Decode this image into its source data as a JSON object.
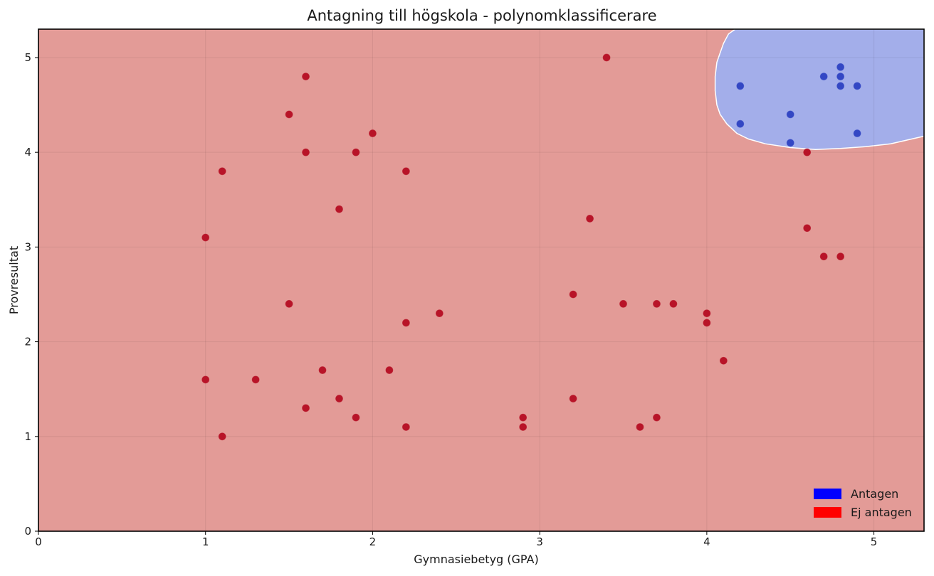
{
  "chart_data": {
    "type": "scatter",
    "title": "Antagning till högskola - polynomklassificerare",
    "xlabel": "Gymnasiebetyg (GPA)",
    "ylabel": "Provresultat",
    "xlim": [
      0,
      5.3
    ],
    "ylim": [
      0,
      5.3
    ],
    "x_ticks": [
      0,
      1,
      2,
      3,
      4,
      5
    ],
    "y_ticks": [
      0,
      1,
      2,
      3,
      4,
      5
    ],
    "grid": true,
    "legend_position": "bottom-right",
    "background_region_color": "#e39b97",
    "decision_region": {
      "label": "Antagen",
      "color": "#a3aeea",
      "boundary": [
        [
          4.17,
          5.3
        ],
        [
          4.13,
          5.25
        ],
        [
          4.1,
          5.15
        ],
        [
          4.08,
          5.05
        ],
        [
          4.06,
          4.95
        ],
        [
          4.05,
          4.8
        ],
        [
          4.05,
          4.65
        ],
        [
          4.06,
          4.5
        ],
        [
          4.08,
          4.4
        ],
        [
          4.12,
          4.3
        ],
        [
          4.18,
          4.2
        ],
        [
          4.25,
          4.14
        ],
        [
          4.35,
          4.09
        ],
        [
          4.5,
          4.05
        ],
        [
          4.65,
          4.03
        ],
        [
          4.8,
          4.04
        ],
        [
          4.95,
          4.06
        ],
        [
          5.1,
          4.09
        ],
        [
          5.2,
          4.13
        ],
        [
          5.3,
          4.17
        ],
        [
          5.3,
          5.3
        ]
      ]
    },
    "series": [
      {
        "name": "Antagen",
        "color": "#3347c4",
        "legend_color": "#0000ff",
        "points": [
          [
            4.2,
            4.7
          ],
          [
            4.2,
            4.3
          ],
          [
            4.5,
            4.4
          ],
          [
            4.5,
            4.1
          ],
          [
            4.7,
            4.8
          ],
          [
            4.8,
            4.9
          ],
          [
            4.8,
            4.8
          ],
          [
            4.8,
            4.7
          ],
          [
            4.9,
            4.7
          ],
          [
            4.9,
            4.2
          ]
        ]
      },
      {
        "name": "Ej antagen",
        "color": "#b81428",
        "legend_color": "#ff0000",
        "points": [
          [
            1.0,
            3.1
          ],
          [
            1.0,
            1.6
          ],
          [
            1.1,
            3.8
          ],
          [
            1.1,
            1.0
          ],
          [
            1.3,
            1.6
          ],
          [
            1.5,
            4.4
          ],
          [
            1.5,
            2.4
          ],
          [
            1.6,
            4.8
          ],
          [
            1.6,
            4.0
          ],
          [
            1.6,
            1.3
          ],
          [
            1.7,
            1.7
          ],
          [
            1.8,
            3.4
          ],
          [
            1.8,
            1.4
          ],
          [
            1.9,
            4.0
          ],
          [
            1.9,
            1.2
          ],
          [
            2.0,
            4.2
          ],
          [
            2.1,
            1.7
          ],
          [
            2.2,
            3.8
          ],
          [
            2.2,
            2.2
          ],
          [
            2.2,
            1.1
          ],
          [
            2.4,
            2.3
          ],
          [
            2.9,
            1.2
          ],
          [
            2.9,
            1.1
          ],
          [
            3.2,
            2.5
          ],
          [
            3.2,
            1.4
          ],
          [
            3.3,
            3.3
          ],
          [
            3.4,
            5.0
          ],
          [
            3.5,
            2.4
          ],
          [
            3.6,
            1.1
          ],
          [
            3.7,
            2.4
          ],
          [
            3.7,
            1.2
          ],
          [
            3.8,
            2.4
          ],
          [
            4.0,
            2.3
          ],
          [
            4.0,
            2.2
          ],
          [
            4.1,
            1.8
          ],
          [
            4.6,
            4.0
          ],
          [
            4.6,
            3.2
          ],
          [
            4.7,
            2.9
          ],
          [
            4.8,
            2.9
          ]
        ]
      }
    ]
  }
}
